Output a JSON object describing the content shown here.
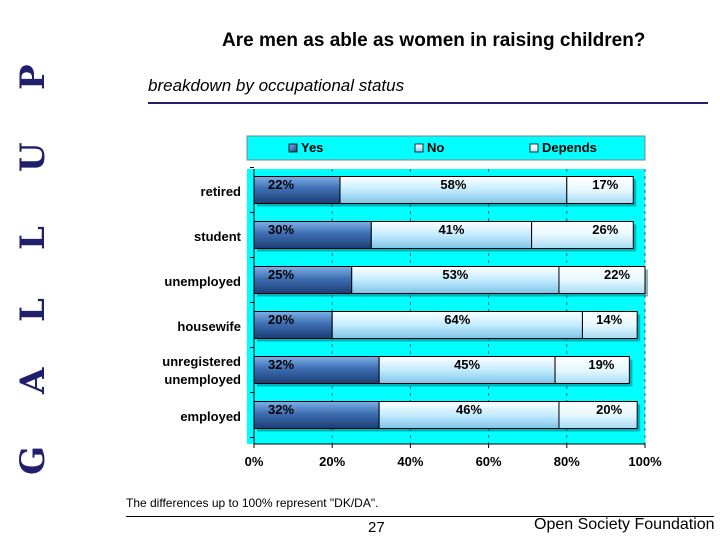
{
  "brand": {
    "side_letters": [
      "G",
      "A",
      "L",
      "L",
      "U",
      "P"
    ]
  },
  "header": {
    "title": "Are men as able as women in raising children?",
    "subtitle": "breakdown by occupational status"
  },
  "footer": {
    "note": "The differences up to 100% represent \"DK/DA\".",
    "page": "27",
    "org": "Open Society Foundation"
  },
  "colors": {
    "plot_bg": "#00ffff",
    "legend_bg": "#00ffff",
    "yes": "#4d7fc0",
    "no": "#cfeeff",
    "depends": "#e2f6ff",
    "border": "#000000"
  },
  "chart_data": {
    "type": "bar",
    "orientation": "horizontal",
    "stacked": true,
    "categories": [
      "retired",
      "student",
      "unemployed",
      "housewife",
      "unregistered unemployed",
      "employed"
    ],
    "category_lines": [
      [
        "retired"
      ],
      [
        "student"
      ],
      [
        "unemployed"
      ],
      [
        "housewife"
      ],
      [
        "unregistered",
        "unemployed"
      ],
      [
        "employed"
      ]
    ],
    "series": [
      {
        "name": "Yes",
        "values": [
          22,
          30,
          25,
          20,
          32,
          32
        ],
        "labels": [
          "22%",
          "30%",
          "25%",
          "20%",
          "32%",
          "32%"
        ]
      },
      {
        "name": "No",
        "values": [
          58,
          41,
          53,
          64,
          45,
          46
        ],
        "labels": [
          "58%",
          "41%",
          "53%",
          "64%",
          "45%",
          "46%"
        ]
      },
      {
        "name": "Depends",
        "values": [
          17,
          26,
          22,
          14,
          19,
          20
        ],
        "labels": [
          "17%",
          "26%",
          "22%",
          "14%",
          "19%",
          "20%"
        ]
      }
    ],
    "xlim": [
      0,
      100
    ],
    "xticks": [
      0,
      20,
      40,
      60,
      80,
      100
    ],
    "xtick_labels": [
      "0%",
      "20%",
      "40%",
      "60%",
      "80%",
      "100%"
    ],
    "grid": "vertical dashed",
    "legend": "top"
  }
}
